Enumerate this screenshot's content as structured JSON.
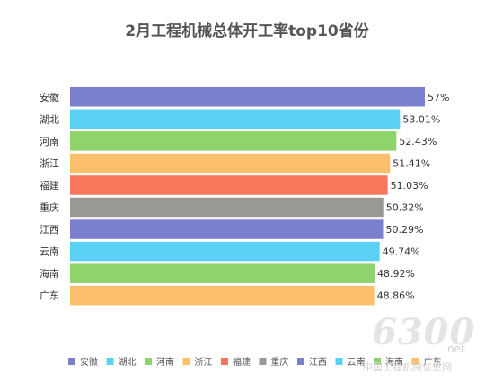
{
  "chart_data": {
    "type": "bar",
    "orientation": "horizontal",
    "title": "2月工程机械总体开工率top10省份",
    "categories": [
      "安徽",
      "湖北",
      "河南",
      "浙江",
      "福建",
      "重庆",
      "江西",
      "云南",
      "海南",
      "广东"
    ],
    "values": [
      57,
      53.01,
      52.43,
      51.41,
      51.03,
      50.32,
      50.29,
      49.74,
      48.92,
      48.86
    ],
    "value_labels": [
      "57%",
      "53.01%",
      "52.43%",
      "51.41%",
      "51.03%",
      "50.32%",
      "50.29%",
      "49.74%",
      "48.92%",
      "48.86%"
    ],
    "colors": [
      "#7b7fcf",
      "#5bd0f5",
      "#8fd36b",
      "#fbbf6c",
      "#f7765c",
      "#9a9893",
      "#7b7fcf",
      "#5bd0f5",
      "#8fd36b",
      "#fbbf6c"
    ],
    "legend_position": "bottom",
    "grid": false
  },
  "watermark": {
    "number": "6300",
    "domain": ".net",
    "text": "中国工程机械信息网"
  }
}
